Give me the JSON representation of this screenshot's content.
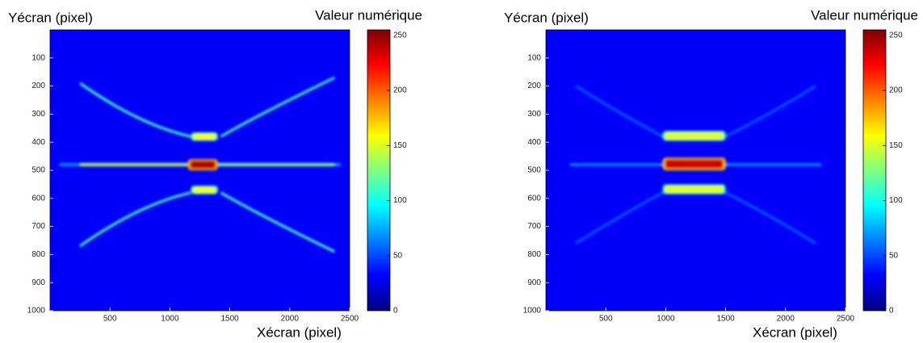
{
  "chart_data": [
    {
      "type": "heatmap",
      "y_label": "Yécran (pixel)",
      "x_label": "Xécran (pixel)",
      "colorbar_label": "Valeur numérique",
      "colormap": "jet",
      "xlim": [
        0,
        2500
      ],
      "ylim": [
        1000,
        0
      ],
      "xticks": [
        500,
        1000,
        1500,
        2000,
        2500
      ],
      "yticks": [
        100,
        200,
        300,
        400,
        500,
        600,
        700,
        800,
        900,
        1000
      ],
      "clim": [
        0,
        255
      ],
      "cticks": [
        0,
        50,
        100,
        150,
        200,
        250
      ]
    },
    {
      "type": "heatmap",
      "y_label": "Yécran (pixel)",
      "x_label": "Xécran (pixel)",
      "colorbar_label": "Valeur numérique",
      "colormap": "jet",
      "xlim": [
        0,
        2500
      ],
      "ylim": [
        1000,
        0
      ],
      "xticks": [
        500,
        1000,
        1500,
        2000,
        2500
      ],
      "yticks": [
        100,
        200,
        300,
        400,
        500,
        600,
        700,
        800,
        900,
        1000
      ],
      "clim": [
        0,
        255
      ],
      "cticks": [
        0,
        50,
        100,
        150,
        200,
        250
      ]
    }
  ]
}
